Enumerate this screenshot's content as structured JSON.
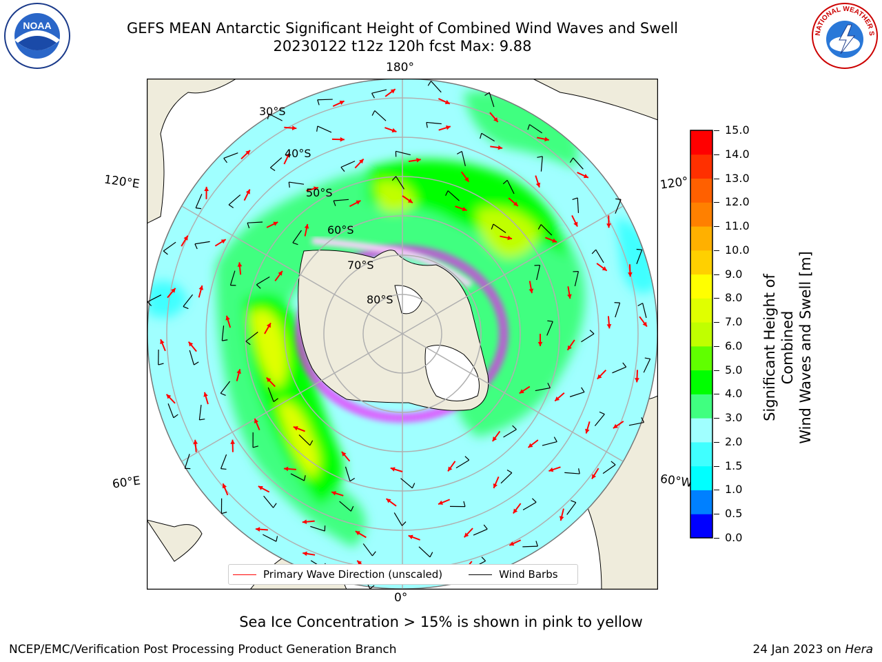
{
  "title_line1": "GEFS MEAN Antarctic Significant Height of Combined Wind Waves and Swell",
  "title_line2": "20230122 t12z 120h fcst   Max: 9.88",
  "logos": {
    "left": "NOAA",
    "right": "NATIONAL WEATHER SERVICE"
  },
  "longitude_labels": {
    "top": "180°",
    "bottom": "0°",
    "upper_left": "120°E",
    "lower_left": "60°E",
    "upper_right": "120°",
    "lower_right": "60°W"
  },
  "latitude_labels": [
    "30°S",
    "40°S",
    "50°S",
    "60°S",
    "70°S",
    "80°S"
  ],
  "legend": {
    "wave_label": "Primary Wave Direction (unscaled)",
    "wind_label": "Wind Barbs",
    "wave_color": "#ff0000",
    "wind_color": "#000000"
  },
  "colorbar": {
    "label_line1": "Significant Height of Combined",
    "label_line2": "Wind Waves and Swell [m]",
    "ticks": [
      "0.0",
      "0.5",
      "1.0",
      "1.5",
      "2.0",
      "3.0",
      "4.0",
      "5.0",
      "6.0",
      "7.0",
      "8.0",
      "9.0",
      "10.0",
      "11.0",
      "12.0",
      "13.0",
      "14.0",
      "15.0"
    ],
    "colors": [
      "#0000ff",
      "#0080ff",
      "#00ffff",
      "#40ffff",
      "#a0ffff",
      "#40ff80",
      "#00ff00",
      "#60ff00",
      "#c0ff00",
      "#e0ff00",
      "#ffff00",
      "#ffd000",
      "#ffb000",
      "#ff8000",
      "#ff6000",
      "#ff3000",
      "#ff0000"
    ]
  },
  "colors": {
    "land": "#efecdc",
    "ocean_base": "#a0ffff",
    "ice_edge": "#ff00ff",
    "grid": "#b0b0b0"
  },
  "note": "Sea Ice Concentration > 15% is shown in pink to yellow",
  "footer_left": "NCEP/EMC/Verification Post Processing Product Generation Branch",
  "footer_date": "24 Jan 2023 on ",
  "footer_host": "Hera"
}
